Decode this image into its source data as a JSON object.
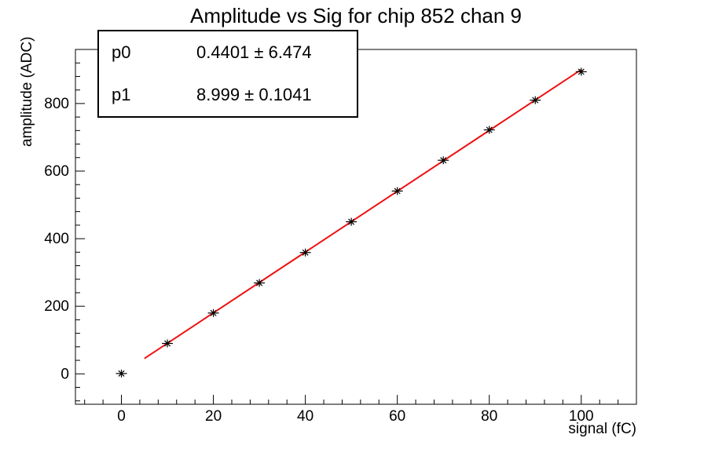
{
  "chart_data": {
    "type": "scatter",
    "title": "Amplitude vs Sig for chip 852 chan 9",
    "xlabel": "signal (fC)",
    "ylabel": "amplitude (ADC)",
    "xlim": [
      -10,
      112
    ],
    "ylim": [
      -90,
      960
    ],
    "x_ticks": [
      0,
      20,
      40,
      60,
      80,
      100
    ],
    "y_ticks": [
      0,
      200,
      400,
      600,
      800
    ],
    "x_minor_step": 4,
    "y_minor_step": 40,
    "grid": false,
    "legend_position": "none",
    "points": {
      "x": [
        0,
        10,
        20,
        30,
        40,
        50,
        60,
        70,
        80,
        90,
        100
      ],
      "y": [
        1,
        90,
        180,
        269,
        359,
        450,
        541,
        632,
        722,
        810,
        894
      ]
    },
    "fit": {
      "type": "linear",
      "p0": 0.4401,
      "p0_err": 6.474,
      "p1": 8.999,
      "p1_err": 0.1041,
      "x_start": 5,
      "x_end": 100,
      "color": "#ee1111"
    },
    "marker": {
      "style": "asterisk",
      "color": "#000000"
    },
    "frame_color": "#000000",
    "background_color": "#ffffff"
  },
  "stats_box": {
    "rows": [
      {
        "name": "p0",
        "text": "0.4401 ± 6.474"
      },
      {
        "name": "p1",
        "text": "8.999 ± 0.1041"
      }
    ]
  }
}
